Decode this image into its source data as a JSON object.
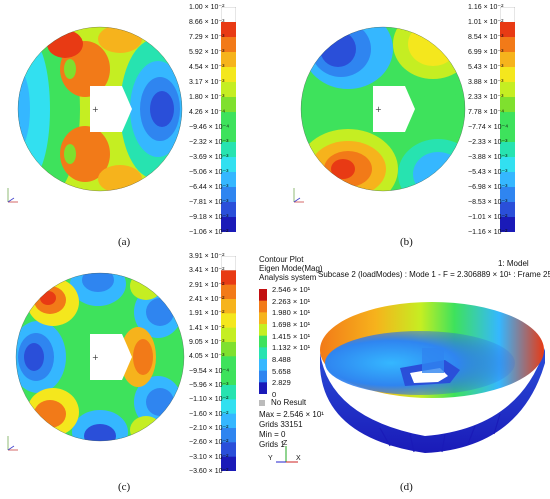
{
  "colors": {
    "scale": [
      "#1a1ab8",
      "#2a4fd9",
      "#2f85f0",
      "#35b7ff",
      "#32e0f0",
      "#27e3b0",
      "#3ee25c",
      "#7fe02e",
      "#c5ee22",
      "#f4e71d",
      "#f6b31c",
      "#f27a18",
      "#e83a14",
      "#c20f10"
    ]
  },
  "panel_a": {
    "caption": "(a)",
    "ticks": [
      "1.00 × 10⁻²",
      "8.66 × 10⁻³",
      "7.29 × 10⁻³",
      "5.92 × 10⁻³",
      "4.54 × 10⁻³",
      "3.17 × 10⁻³",
      "1.80 × 10⁻³",
      "4.26 × 10⁻⁴",
      "−9.46 × 10⁻⁴",
      "−2.32 × 10⁻³",
      "−3.69 × 10⁻³",
      "−5.06 × 10⁻³",
      "−6.44 × 10⁻³",
      "−7.81 × 10⁻³",
      "−9.18 × 10⁻³",
      "−1.06 × 10⁻²"
    ]
  },
  "panel_b": {
    "caption": "(b)",
    "ticks": [
      "1.16 × 10⁻²",
      "1.01 × 10⁻²",
      "8.54 × 10⁻³",
      "6.99 × 10⁻³",
      "5.43 × 10⁻³",
      "3.88 × 10⁻³",
      "2.33 × 10⁻³",
      "7.78 × 10⁻⁴",
      "−7.74 × 10⁻⁴",
      "−2.33 × 10⁻³",
      "−3.88 × 10⁻³",
      "−5.43 × 10⁻³",
      "−6.98 × 10⁻³",
      "−8.53 × 10⁻³",
      "−1.01 × 10⁻²",
      "−1.16 × 10⁻²"
    ]
  },
  "panel_c": {
    "caption": "(c)",
    "ticks": [
      "3.91 × 10⁻²",
      "3.41 × 10⁻²",
      "2.91 × 10⁻²",
      "2.41 × 10⁻²",
      "1.91 × 10⁻²",
      "1.41 × 10⁻²",
      "9.05 × 10⁻³",
      "4.05 × 10⁻³",
      "−9.54 × 10⁻⁴",
      "−5.96 × 10⁻³",
      "−1.10 × 10⁻²",
      "−1.60 × 10⁻²",
      "−2.10 × 10⁻²",
      "−2.60 × 10⁻²",
      "−3.10 × 10⁻²",
      "−3.60 × 10⁻²"
    ]
  },
  "panel_d": {
    "caption": "(d)",
    "model": "1: Model",
    "subcase": "Subcase 2 (loadModes) : Mode 1 - F = 2.306889 × 10¹ : Frame 25",
    "legend_title": [
      "Contour Plot",
      "Eigen Mode(Mag)",
      "Analysis system"
    ],
    "legend_ticks": [
      "2.546 × 10¹",
      "2.263 × 10¹",
      "1.980 × 10¹",
      "1.698 × 10¹",
      "1.415 × 10¹",
      "1.132 × 10¹",
      "8.488",
      "5.658",
      "2.829",
      "0"
    ],
    "no_result": "No Result",
    "stats": [
      "Max = 2.546 × 10¹",
      "Grids 33151",
      "Min = 0",
      "Grids 1"
    ]
  },
  "axes": {
    "x": "X",
    "y": "Y",
    "z": "Z"
  }
}
